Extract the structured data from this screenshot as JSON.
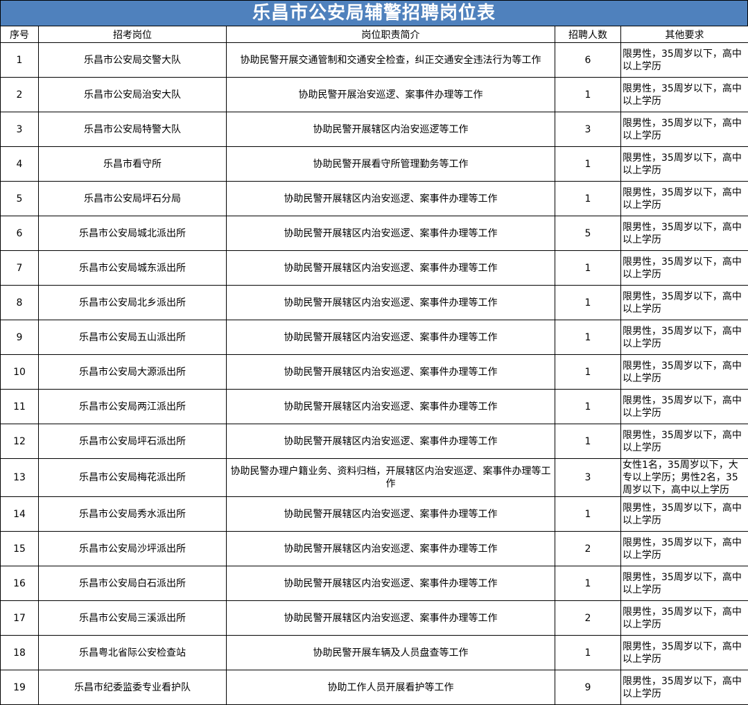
{
  "table": {
    "title": "乐昌市公安局辅警招聘岗位表",
    "headers": [
      "序号",
      "招考岗位",
      "岗位职责简介",
      "招聘人数",
      "其他要求"
    ],
    "rows": [
      [
        1,
        "乐昌市公安局交警大队",
        "协助民警开展交通管制和交通安全检查，纠正交通安全违法行为等工作",
        6,
        "限男性，35周岁以下，高中以上学历"
      ],
      [
        2,
        "乐昌市公安局治安大队",
        "协助民警开展治安巡逻、案事件办理等工作",
        1,
        "限男性，35周岁以下，高中以上学历"
      ],
      [
        3,
        "乐昌市公安局特警大队",
        "协助民警开展辖区内治安巡逻等工作",
        3,
        "限男性，35周岁以下，高中以上学历"
      ],
      [
        4,
        "乐昌市看守所",
        "协助民警开展看守所管理勤务等工作",
        1,
        "限男性，35周岁以下，高中以上学历"
      ],
      [
        5,
        "乐昌市公安局坪石分局",
        "协助民警开展辖区内治安巡逻、案事件办理等工作",
        1,
        "限男性，35周岁以下，高中以上学历"
      ],
      [
        6,
        "乐昌市公安局城北派出所",
        "协助民警开展辖区内治安巡逻、案事件办理等工作",
        5,
        "限男性，35周岁以下，高中以上学历"
      ],
      [
        7,
        "乐昌市公安局城东派出所",
        "协助民警开展辖区内治安巡逻、案事件办理等工作",
        1,
        "限男性，35周岁以下，高中以上学历"
      ],
      [
        8,
        "乐昌市公安局北乡派出所",
        "协助民警开展辖区内治安巡逻、案事件办理等工作",
        1,
        "限男性，35周岁以下，高中以上学历"
      ],
      [
        9,
        "乐昌市公安局五山派出所",
        "协助民警开展辖区内治安巡逻、案事件办理等工作",
        1,
        "限男性，35周岁以下，高中以上学历"
      ],
      [
        10,
        "乐昌市公安局大源派出所",
        "协助民警开展辖区内治安巡逻、案事件办理等工作",
        1,
        "限男性，35周岁以下，高中以上学历"
      ],
      [
        11,
        "乐昌市公安局两江派出所",
        "协助民警开展辖区内治安巡逻、案事件办理等工作",
        1,
        "限男性，35周岁以下，高中以上学历"
      ],
      [
        12,
        "乐昌市公安局坪石派出所",
        "协助民警开展辖区内治安巡逻、案事件办理等工作",
        1,
        "限男性，35周岁以下，高中以上学历"
      ],
      [
        13,
        "乐昌市公安局梅花派出所",
        "协助民警办理户籍业务、资料归档，开展辖区内治安巡逻、案事件办理等工作",
        3,
        "女性1名，35周岁以下，大专以上学历；男性2名，35周岁以下，高中以上学历"
      ],
      [
        14,
        "乐昌市公安局秀水派出所",
        "协助民警开展辖区内治安巡逻、案事件办理等工作",
        1,
        "限男性，35周岁以下，高中以上学历"
      ],
      [
        15,
        "乐昌市公安局沙坪派出所",
        "协助民警开展辖区内治安巡逻、案事件办理等工作",
        2,
        "限男性，35周岁以下，高中以上学历"
      ],
      [
        16,
        "乐昌市公安局白石派出所",
        "协助民警开展辖区内治安巡逻、案事件办理等工作",
        1,
        "限男性，35周岁以下，高中以上学历"
      ],
      [
        17,
        "乐昌市公安局三溪派出所",
        "协助民警开展辖区内治安巡逻、案事件办理等工作",
        2,
        "限男性，35周岁以下，高中以上学历"
      ],
      [
        18,
        "乐昌粤北省际公安检查站",
        "协助民警开展车辆及人员盘查等工作",
        1,
        "限男性，35周岁以下，高中以上学历"
      ],
      [
        19,
        "乐昌市纪委监委专业看护队",
        "协助工作人员开展看护等工作",
        9,
        "限男性，35周岁以下，高中以上学历"
      ]
    ]
  }
}
